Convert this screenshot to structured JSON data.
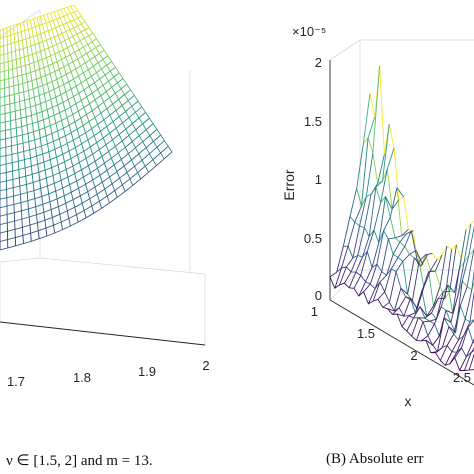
{
  "chart_data": [
    {
      "type": "surface",
      "panel": "A",
      "title": "",
      "xlabel": "",
      "ylabel": "",
      "zlabel": "",
      "x_ticks": [
        "1.7",
        "1.8",
        "1.9",
        "2"
      ],
      "xlim": [
        1.6,
        2.0
      ],
      "grid": true,
      "colormap": [
        "#440154",
        "#3b528b",
        "#21918c",
        "#5ec962",
        "#fde725"
      ],
      "caption": "ν ∈ [1.5, 2] and m = 13."
    },
    {
      "type": "surface",
      "panel": "B",
      "title": "",
      "xlabel": "x",
      "ylabel": "",
      "zlabel": "Error",
      "z_exponent": "×10⁻⁵",
      "z_ticks": [
        "0",
        "0.5",
        "1",
        "1.5",
        "2"
      ],
      "zlim": [
        0,
        2
      ],
      "x_ticks": [
        "1",
        "1.5",
        "2",
        "2.5"
      ],
      "xlim": [
        1,
        2.5
      ],
      "grid": true,
      "colormap": [
        "#440154",
        "#3b528b",
        "#21918c",
        "#5ec962",
        "#fde725"
      ],
      "caption": "(B)  Absolute err"
    }
  ],
  "colors": {
    "axis": "#262626",
    "grid": "#e6e6e6",
    "box": "#d9d9d9"
  }
}
